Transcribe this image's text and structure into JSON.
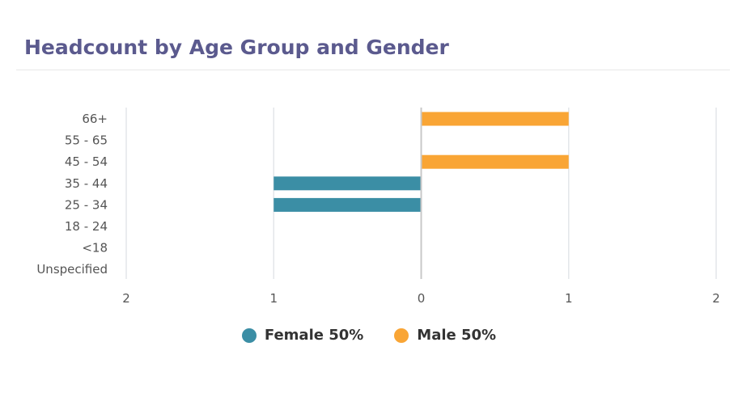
{
  "header": {
    "title": "Headcount by Age Group and Gender"
  },
  "chart_data": {
    "type": "bar",
    "orientation": "horizontal",
    "title": "Headcount by Age Group and Gender",
    "categories": [
      "66+",
      "55 - 65",
      "45 - 54",
      "35 - 44",
      "25 - 34",
      "18 - 24",
      "<18",
      "Unspecified"
    ],
    "series": [
      {
        "name": "Female 50%",
        "color": "#3b8ea5",
        "values": [
          0,
          0,
          0,
          1,
          1,
          0,
          0,
          0
        ]
      },
      {
        "name": "Male 50%",
        "color": "#f9a535",
        "values": [
          1,
          0,
          1,
          0,
          0,
          0,
          0,
          0
        ]
      }
    ],
    "xlim": [
      -2,
      2
    ],
    "x_ticks": [
      "2",
      "1",
      "0",
      "1",
      "2"
    ],
    "grid": true,
    "legend_position": "bottom"
  }
}
